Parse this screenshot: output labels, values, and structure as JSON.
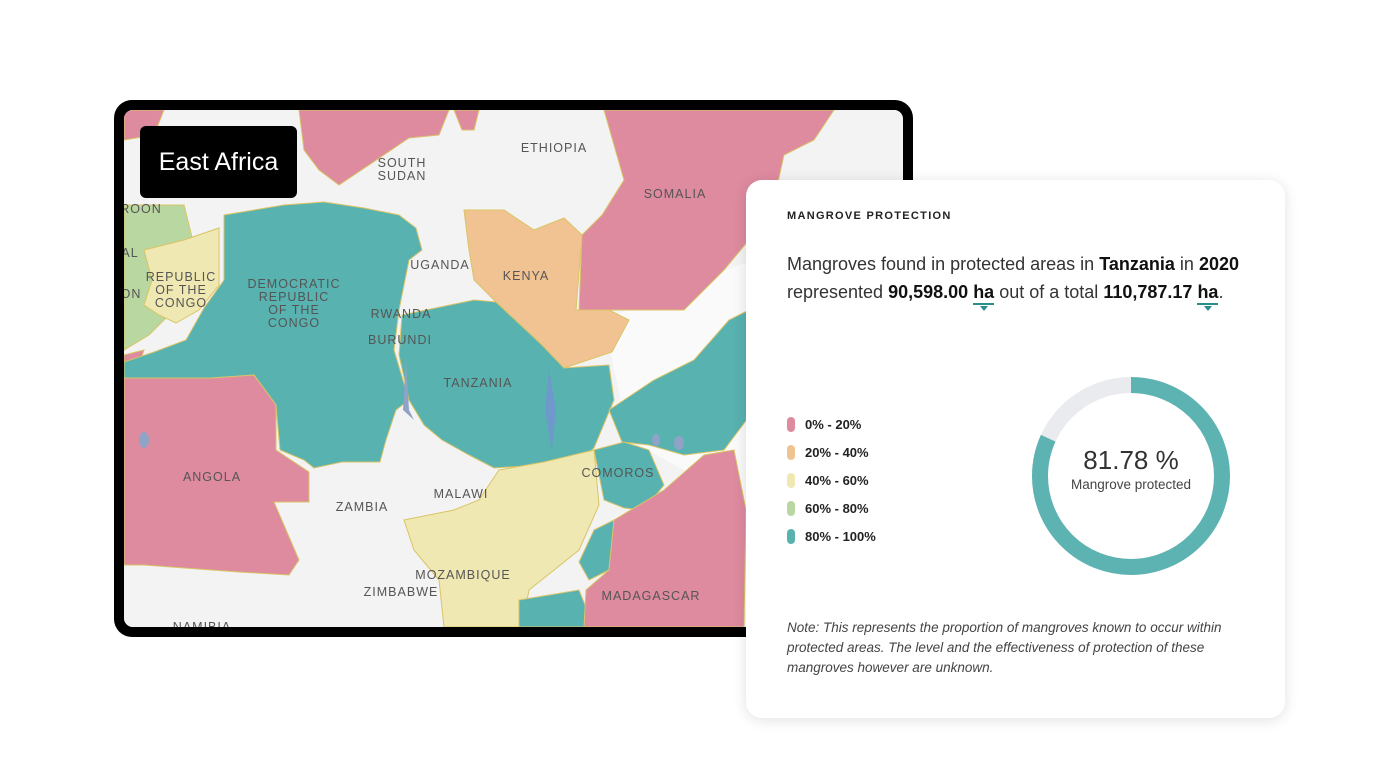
{
  "region_badge": "East Africa",
  "map": {
    "countries": [
      {
        "key": "south_sudan",
        "lines": [
          "SOUTH",
          "SUDAN"
        ]
      },
      {
        "key": "ethiopia",
        "lines": [
          "ETHIOPIA"
        ]
      },
      {
        "key": "somalia",
        "lines": [
          "SOMALIA"
        ]
      },
      {
        "key": "cameroon",
        "lines": [
          "ROON"
        ]
      },
      {
        "key": "gabon",
        "lines": [
          "ON"
        ]
      },
      {
        "key": "republic_of_the_congo",
        "lines": [
          "REPUBLIC",
          "OF THE",
          "CONGO"
        ]
      },
      {
        "key": "democratic_republic_of_the_congo",
        "lines": [
          "DEMOCRATIC",
          "REPUBLIC",
          "OF THE",
          "CONGO"
        ]
      },
      {
        "key": "uganda",
        "lines": [
          "UGANDA"
        ]
      },
      {
        "key": "kenya",
        "lines": [
          "KENYA"
        ]
      },
      {
        "key": "rwanda",
        "lines": [
          "RWANDA"
        ]
      },
      {
        "key": "burundi",
        "lines": [
          "BURUNDI"
        ]
      },
      {
        "key": "tanzania",
        "lines": [
          "TANZANIA"
        ]
      },
      {
        "key": "angola",
        "lines": [
          "ANGOLA"
        ]
      },
      {
        "key": "zambia",
        "lines": [
          "ZAMBIA"
        ]
      },
      {
        "key": "malawi",
        "lines": [
          "MALAWI"
        ]
      },
      {
        "key": "comoros",
        "lines": [
          "COMOROS"
        ]
      },
      {
        "key": "mozambique",
        "lines": [
          "MOZAMBIQUE"
        ]
      },
      {
        "key": "zimbabwe",
        "lines": [
          "ZIMBABWE"
        ]
      },
      {
        "key": "madagascar",
        "lines": [
          "MADAGASCAR"
        ]
      },
      {
        "key": "namibia",
        "lines": [
          "NAMIBIA"
        ]
      },
      {
        "key": "al_fragment",
        "lines": [
          "AL"
        ]
      }
    ]
  },
  "panel": {
    "heading": "MANGROVE PROTECTION",
    "summary": {
      "prefix": "Mangroves found in protected areas in",
      "country": "Tanzania",
      "in_word": "in",
      "year": "2020",
      "represented": "represented",
      "protected_value": "90,598.00",
      "unit": "ha",
      "out_of": "out of a total",
      "total_value": "110,787.17",
      "end": "."
    },
    "legend": [
      {
        "label": "0% - 20%",
        "color": "#de8a9f"
      },
      {
        "label": "20% - 40%",
        "color": "#f2c392"
      },
      {
        "label": "40% - 60%",
        "color": "#f0e8b2"
      },
      {
        "label": "60% - 80%",
        "color": "#b9d7a0"
      },
      {
        "label": "80% - 100%",
        "color": "#58b2b0"
      }
    ],
    "donut": {
      "value_text": "81.78 %",
      "label": "Mangrove protected",
      "fraction": 0.8178,
      "fill_color": "#5cb3b1",
      "track_color": "#e9ebee"
    },
    "note": "Note: This represents the proportion of mangroves known to occur within protected areas. The level and the effectiveness of protection of these mangroves however are unknown."
  }
}
